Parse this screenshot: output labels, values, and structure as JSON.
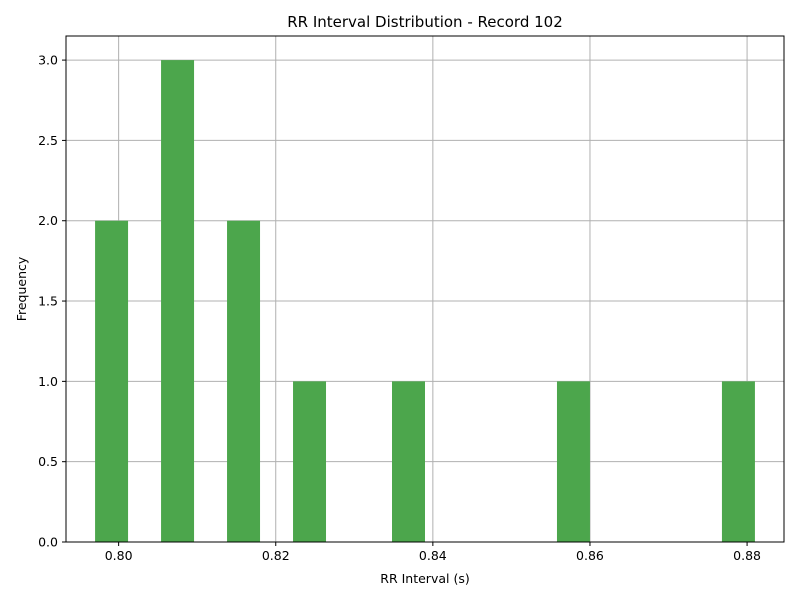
{
  "chart_data": {
    "type": "bar",
    "title": "RR Interval Distribution - Record 102",
    "xlabel": "RR Interval (s)",
    "ylabel": "Frequency",
    "xlim": [
      0.7933,
      0.8847
    ],
    "ylim": [
      0,
      3.15
    ],
    "grid": true,
    "bar_color": "#4ca64c",
    "grid_color": "#b0b0b0",
    "bars": [
      {
        "x_start": 0.797,
        "x_end": 0.8012,
        "value": 2
      },
      {
        "x_start": 0.8054,
        "x_end": 0.8096,
        "value": 3
      },
      {
        "x_start": 0.8138,
        "x_end": 0.818,
        "value": 2
      },
      {
        "x_start": 0.8222,
        "x_end": 0.8264,
        "value": 1
      },
      {
        "x_start": 0.8348,
        "x_end": 0.839,
        "value": 1
      },
      {
        "x_start": 0.8558,
        "x_end": 0.86,
        "value": 1
      },
      {
        "x_start": 0.8768,
        "x_end": 0.881,
        "value": 1
      }
    ],
    "x_ticks": [
      {
        "value": 0.8,
        "label": "0.80"
      },
      {
        "value": 0.82,
        "label": "0.82"
      },
      {
        "value": 0.84,
        "label": "0.84"
      },
      {
        "value": 0.86,
        "label": "0.86"
      },
      {
        "value": 0.88,
        "label": "0.88"
      }
    ],
    "y_ticks": [
      {
        "value": 0.0,
        "label": "0.0"
      },
      {
        "value": 0.5,
        "label": "0.5"
      },
      {
        "value": 1.0,
        "label": "1.0"
      },
      {
        "value": 1.5,
        "label": "1.5"
      },
      {
        "value": 2.0,
        "label": "2.0"
      },
      {
        "value": 2.5,
        "label": "2.5"
      },
      {
        "value": 3.0,
        "label": "3.0"
      }
    ]
  }
}
